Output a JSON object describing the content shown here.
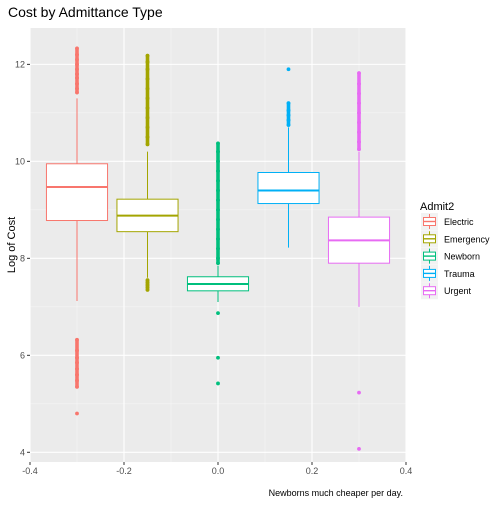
{
  "chart_data": {
    "type": "boxplot",
    "title": "Cost by Admittance Type",
    "xlabel": "",
    "ylabel": "Log of Cost",
    "caption": "Newborns much cheaper per day.",
    "xlim": [
      -0.4,
      0.4
    ],
    "ylim": [
      3.8,
      12.75
    ],
    "x_ticks": [
      -0.4,
      -0.2,
      0.0,
      0.2,
      0.4
    ],
    "x_tick_labels": [
      "-0.4",
      "-0.2",
      "0.0",
      "0.2",
      "0.4"
    ],
    "y_ticks": [
      4,
      6,
      8,
      10,
      12
    ],
    "y_tick_labels": [
      "4",
      "6",
      "8",
      "10",
      "12"
    ],
    "grid": true,
    "legend": {
      "title": "Admit2",
      "position": "right"
    },
    "series": [
      {
        "name": "Electric",
        "color": "#F8766D",
        "x": -0.3,
        "q1": 8.78,
        "median": 9.47,
        "q3": 9.95,
        "whisker_low": 7.12,
        "whisker_high": 11.3,
        "outliers": [
          12.33,
          12.2,
          12.1,
          12.0,
          11.9,
          11.8,
          11.72,
          11.6,
          11.5,
          11.42,
          6.32,
          6.1,
          5.95,
          5.85,
          5.72,
          5.6,
          5.48,
          5.35,
          4.8
        ]
      },
      {
        "name": "Emergency",
        "color": "#A3A500",
        "x": -0.15,
        "q1": 8.55,
        "median": 8.88,
        "q3": 9.22,
        "whisker_low": 7.6,
        "whisker_high": 10.2,
        "outliers": [
          12.18,
          12.05,
          11.9,
          11.7,
          11.5,
          11.3,
          11.1,
          10.9,
          10.7,
          10.5,
          10.35,
          7.55,
          7.5,
          7.45,
          7.4,
          7.35
        ]
      },
      {
        "name": "Newborn",
        "color": "#00BF7D",
        "x": 0.0,
        "q1": 7.33,
        "median": 7.47,
        "q3": 7.62,
        "whisker_low": 7.1,
        "whisker_high": 7.85,
        "outliers": [
          10.37,
          10.2,
          10.0,
          9.8,
          9.6,
          9.4,
          9.2,
          9.0,
          8.8,
          8.6,
          8.4,
          8.2,
          8.0,
          7.9,
          6.87,
          5.95,
          5.42
        ]
      },
      {
        "name": "Trauma",
        "color": "#00B0F6",
        "x": 0.15,
        "q1": 9.13,
        "median": 9.4,
        "q3": 9.77,
        "whisker_low": 8.22,
        "whisker_high": 10.7,
        "outliers": [
          11.9,
          11.2,
          11.05,
          10.95,
          10.85,
          10.75
        ]
      },
      {
        "name": "Urgent",
        "color": "#E76BF3",
        "x": 0.3,
        "q1": 7.9,
        "median": 8.37,
        "q3": 8.85,
        "whisker_low": 7.0,
        "whisker_high": 10.2,
        "outliers": [
          11.82,
          11.6,
          11.4,
          11.2,
          11.0,
          10.8,
          10.6,
          10.4,
          10.25,
          5.23,
          4.07
        ]
      }
    ]
  }
}
